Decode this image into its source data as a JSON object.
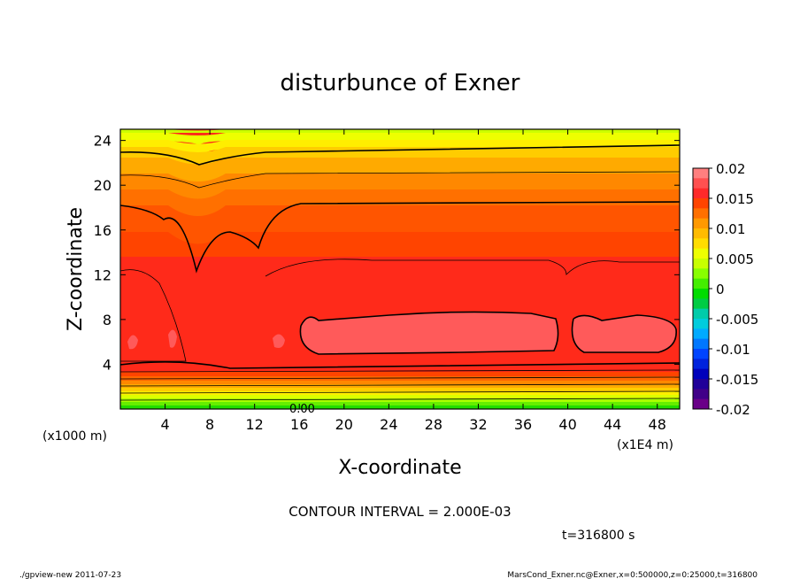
{
  "chart_data": {
    "type": "heatmap",
    "title": "disturbunce of Exner",
    "xlabel": "X-coordinate",
    "ylabel": "Z-coordinate",
    "x_unit_left": "(x1000 m)",
    "x_unit_right": "(x1E4 m)",
    "xlim": [
      0,
      50
    ],
    "ylim": [
      0,
      25
    ],
    "xticks": [
      "4",
      "8",
      "12",
      "16",
      "20",
      "24",
      "28",
      "32",
      "36",
      "40",
      "44",
      "48"
    ],
    "yticks": [
      "4",
      "8",
      "12",
      "16",
      "20",
      "24"
    ],
    "colorbar": {
      "labels": [
        "0.02",
        "0.015",
        "0.01",
        "0.005",
        "0",
        "-0.005",
        "-0.01",
        "-0.015",
        "-0.02"
      ],
      "range": [
        -0.02,
        0.02
      ],
      "colors": [
        "#ff7f7f",
        "#ff5050",
        "#ff2a2a",
        "#ff4400",
        "#ff7000",
        "#ff9900",
        "#ffbb00",
        "#ffdd00",
        "#eeff00",
        "#c8ff00",
        "#88ff00",
        "#44ee00",
        "#00dd00",
        "#00cc44",
        "#00ccaa",
        "#00ccdd",
        "#00aaff",
        "#0077ff",
        "#0044ff",
        "#0022dd",
        "#0000bb",
        "#200099",
        "#400088",
        "#6a0088"
      ]
    },
    "contour_interval_text": "CONTOUR INTERVAL = 2.000E-03",
    "zero_label": "0.00",
    "time_text": "t=316800 s"
  },
  "footer": {
    "left": "./gpview-new 2011-07-23",
    "right": "MarsCond_Exner.nc@Exner,x=0:500000,z=0:25000,t=316800"
  }
}
